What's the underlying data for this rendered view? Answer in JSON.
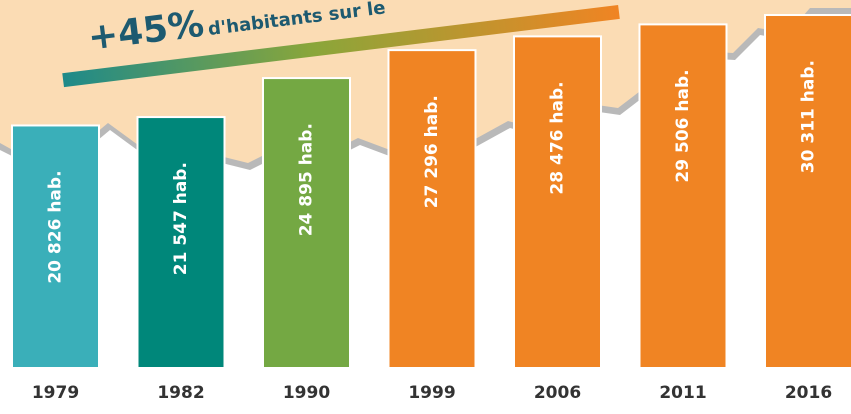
{
  "chart_data": {
    "type": "bar",
    "title": "+45%",
    "subtitle": "d'habitants sur le",
    "categories": [
      "1979",
      "1982",
      "1990",
      "1999",
      "2006",
      "2011",
      "2016"
    ],
    "values": [
      20826,
      21547,
      24895,
      27296,
      28476,
      29506,
      30311
    ],
    "value_labels": [
      "20 826 hab.",
      "21 547 hab.",
      "24 895 hab.",
      "27 296 hab.",
      "28 476 hab.",
      "29 506 hab.",
      "30 311 hab."
    ],
    "colors": [
      "#3aafb9",
      "#00877a",
      "#74a843",
      "#f08423",
      "#f08423",
      "#f08423",
      "#f08423"
    ],
    "ylim": [
      0,
      31600
    ]
  }
}
